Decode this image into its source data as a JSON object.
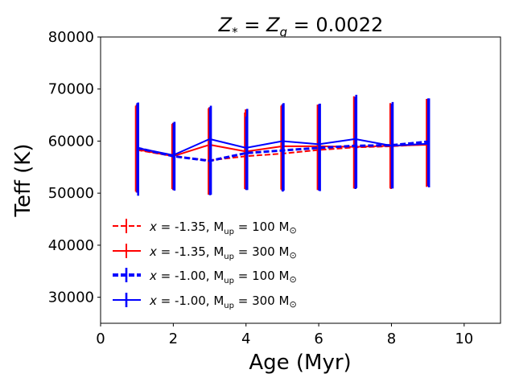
{
  "chart_data": {
    "type": "line",
    "title": {
      "var1": "Z",
      "sub1": "*",
      "eq1": " = ",
      "var2": "Z",
      "sub2": "g",
      "rest": " = 0.0022"
    },
    "xlabel": "Age (Myr)",
    "ylabel": "Teff (K)",
    "xlim": [
      0,
      11
    ],
    "ylim": [
      25000,
      80000
    ],
    "xticks": [
      0,
      2,
      4,
      6,
      8,
      10
    ],
    "yticks": [
      30000,
      40000,
      50000,
      60000,
      70000,
      80000
    ],
    "x": [
      1,
      2,
      3,
      4,
      5,
      6,
      7,
      8,
      9
    ],
    "series": [
      {
        "name": "x = -1.35, Mup = 100 Msun",
        "color": "#ff0000",
        "style": "dashed",
        "width": 2,
        "values": [
          58300,
          57100,
          56300,
          57100,
          57600,
          58300,
          58800,
          59000,
          59400
        ],
        "err_lo": [
          8000,
          6300,
          6600,
          6300,
          6900,
          7700,
          7900,
          8100,
          8200
        ],
        "err_hi": [
          8500,
          6200,
          10000,
          8400,
          9200,
          8700,
          9800,
          8300,
          8700
        ]
      },
      {
        "name": "x = -1.35, Mup = 300 Msun",
        "color": "#ff0000",
        "style": "solid",
        "width": 2,
        "values": [
          58400,
          57100,
          59300,
          58000,
          59000,
          59000,
          58900,
          59100,
          59300
        ],
        "err_lo": [
          8300,
          6500,
          9600,
          7300,
          8500,
          8400,
          8000,
          8300,
          8000
        ],
        "err_hi": [
          8600,
          6400,
          7200,
          8100,
          8000,
          8000,
          9500,
          8100,
          8700
        ]
      },
      {
        "name": "x = -1.00, Mup = 100 Msun",
        "color": "#0000ff",
        "style": "dashed",
        "width": 3,
        "values": [
          58700,
          57100,
          56200,
          57700,
          58200,
          58700,
          59100,
          59200,
          59900
        ],
        "err_lo": [
          8600,
          6500,
          6600,
          7100,
          7900,
          8200,
          8300,
          8300,
          8500
        ],
        "err_hi": [
          8600,
          6400,
          10300,
          7000,
          8900,
          8400,
          9400,
          8000,
          8300
        ]
      },
      {
        "name": "x = -1.00, Mup = 300 Msun",
        "color": "#0000ff",
        "style": "solid",
        "width": 2,
        "values": [
          58700,
          57300,
          60400,
          58700,
          60000,
          59400,
          60400,
          59100,
          59500
        ],
        "err_lo": [
          9200,
          6800,
          10700,
          8100,
          9500,
          9000,
          9400,
          8200,
          8400
        ],
        "err_hi": [
          8700,
          6400,
          6400,
          7500,
          7300,
          7800,
          8500,
          8400,
          8700
        ]
      }
    ],
    "legend": {
      "location": "lower-left",
      "entries": [
        {
          "x_sym": "x",
          "text": " = -1.35, M",
          "sub": "up",
          "mid": " = 100 M",
          "sun": "⊙"
        },
        {
          "x_sym": "x",
          "text": " = -1.35, M",
          "sub": "up",
          "mid": " = 300 M",
          "sun": "⊙"
        },
        {
          "x_sym": "x",
          "text": " = -1.00, M",
          "sub": "up",
          "mid": " = 100 M",
          "sun": "⊙"
        },
        {
          "x_sym": "x",
          "text": " = -1.00, M",
          "sub": "up",
          "mid": " = 300 M",
          "sun": "⊙"
        }
      ]
    }
  }
}
